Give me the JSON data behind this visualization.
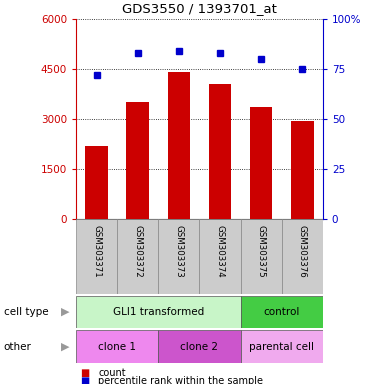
{
  "title": "GDS3550 / 1393701_at",
  "samples": [
    "GSM303371",
    "GSM303372",
    "GSM303373",
    "GSM303374",
    "GSM303375",
    "GSM303376"
  ],
  "bar_values": [
    2200,
    3500,
    4400,
    4050,
    3350,
    2950
  ],
  "percentile_values": [
    72,
    83,
    84,
    83,
    80,
    75
  ],
  "bar_color": "#cc0000",
  "dot_color": "#0000cc",
  "ylim_left": [
    0,
    6000
  ],
  "ylim_right": [
    0,
    100
  ],
  "yticks_left": [
    0,
    1500,
    3000,
    4500,
    6000
  ],
  "yticks_right": [
    0,
    25,
    50,
    75,
    100
  ],
  "ytick_labels_left": [
    "0",
    "1500",
    "3000",
    "4500",
    "6000"
  ],
  "ytick_labels_right": [
    "0",
    "25",
    "50",
    "75",
    "100%"
  ],
  "cell_type_labels": [
    {
      "text": "GLI1 transformed",
      "start": 0,
      "end": 4,
      "color": "#c8f5c8"
    },
    {
      "text": "control",
      "start": 4,
      "end": 6,
      "color": "#44cc44"
    }
  ],
  "other_labels": [
    {
      "text": "clone 1",
      "start": 0,
      "end": 2,
      "color": "#ee88ee"
    },
    {
      "text": "clone 2",
      "start": 2,
      "end": 4,
      "color": "#cc55cc"
    },
    {
      "text": "parental cell",
      "start": 4,
      "end": 6,
      "color": "#f0aaee"
    }
  ],
  "legend_count_color": "#cc0000",
  "legend_dot_color": "#0000cc",
  "row_label_cell_type": "cell type",
  "row_label_other": "other",
  "sample_box_color": "#cccccc",
  "background_color": "#ffffff",
  "arrow_color": "#999999"
}
